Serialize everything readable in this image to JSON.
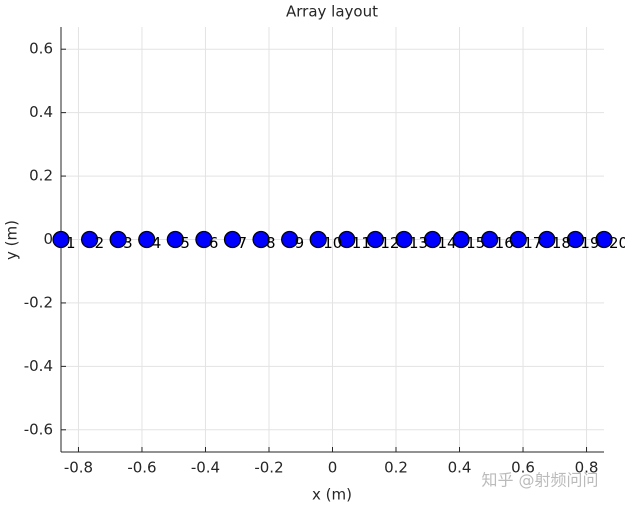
{
  "chart_data": {
    "type": "scatter",
    "title": "Array layout",
    "x_label": "x (m)",
    "y_label": "y (m)",
    "series": [
      {
        "color": "#0000ff",
        "edge_color": "#000000",
        "x": [
          -0.855,
          -0.765,
          -0.675,
          -0.585,
          -0.495,
          -0.405,
          -0.315,
          -0.225,
          -0.135,
          -0.045,
          0.045,
          0.135,
          0.225,
          0.315,
          0.405,
          0.495,
          0.585,
          0.675,
          0.765,
          0.855
        ],
        "values": [
          0,
          0,
          0,
          0,
          0,
          0,
          0,
          0,
          0,
          0,
          0,
          0,
          0,
          0,
          0,
          0,
          0,
          0,
          0,
          0
        ],
        "value_labels": [
          "1",
          "2",
          "3",
          "4",
          "5",
          "6",
          "7",
          "8",
          "9",
          "10",
          "11",
          "12",
          "13",
          "14",
          "15",
          "16",
          "17",
          "18",
          "19",
          "20"
        ]
      }
    ],
    "xlim": [
      -0.855,
      0.855
    ],
    "xticks": [
      -0.8,
      -0.6,
      -0.4,
      -0.2,
      0,
      0.2,
      0.4,
      0.6,
      0.8
    ],
    "ylim": [
      -0.67,
      0.67
    ],
    "yticks": [
      -0.6,
      -0.4,
      -0.2,
      0,
      0.2,
      0.4,
      0.6
    ],
    "grid": true,
    "watermark": "知乎 @射频问问"
  }
}
